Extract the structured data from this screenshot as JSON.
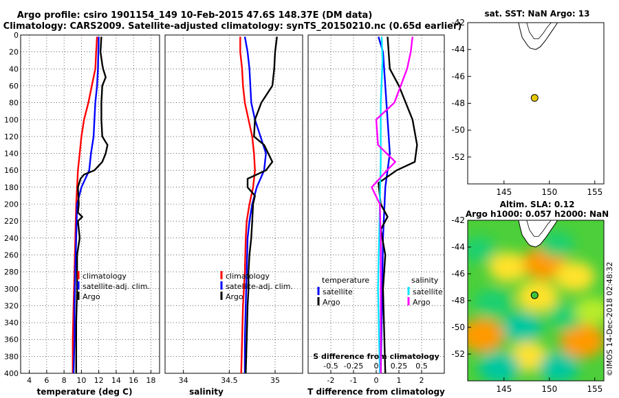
{
  "header": {
    "title_line1": "Argo profile: csiro 1901154_149 10-Feb-2015 47.6S 148.37E (DM data)",
    "title_line2": "Climatology: CARS2009. Satellite-adjusted climatology: synTS_20150210.nc (0.65d earlier)"
  },
  "colors": {
    "climatology": "#ff0000",
    "satellite_adj": "#0000ff",
    "argo": "#000000",
    "sal_satellite": "#00e5ff",
    "sal_argo": "#ff00ff",
    "grid": "#000000",
    "land": "#ffffff",
    "float_marker": "#e5c800"
  },
  "depth_axis": {
    "ticks": [
      "0",
      "20",
      "40",
      "60",
      "80",
      "100",
      "120",
      "140",
      "160",
      "180",
      "200",
      "220",
      "240",
      "260",
      "280",
      "300",
      "320",
      "340",
      "360",
      "380",
      "400"
    ],
    "range": [
      0,
      400
    ]
  },
  "chart_data": [
    {
      "type": "line",
      "id": "temperature",
      "xlabel": "temperature (deg C)",
      "xlim": [
        3,
        19
      ],
      "ylim": [
        400,
        0
      ],
      "xticks": [
        "4",
        "6",
        "8",
        "10",
        "12",
        "14",
        "16",
        "18"
      ],
      "xtick_values": [
        4,
        6,
        8,
        10,
        12,
        14,
        16,
        18
      ],
      "legend": {
        "position": "bottom-right",
        "entries": [
          "climatology",
          "satellite-adj. clim.",
          "Argo"
        ]
      },
      "series": [
        {
          "name": "climatology",
          "color": "#ff0000",
          "points": [
            [
              11.8,
              2
            ],
            [
              11.7,
              20
            ],
            [
              11.6,
              40
            ],
            [
              11.2,
              60
            ],
            [
              10.8,
              80
            ],
            [
              10.3,
              100
            ],
            [
              10.0,
              120
            ],
            [
              9.8,
              140
            ],
            [
              9.6,
              160
            ],
            [
              9.5,
              180
            ],
            [
              9.4,
              200
            ],
            [
              9.3,
              240
            ],
            [
              9.2,
              280
            ],
            [
              9.1,
              320
            ],
            [
              9.0,
              360
            ],
            [
              9.0,
              400
            ]
          ]
        },
        {
          "name": "satellite-adj. clim.",
          "color": "#0000ff",
          "points": [
            [
              12.0,
              2
            ],
            [
              11.95,
              20
            ],
            [
              11.9,
              40
            ],
            [
              11.8,
              60
            ],
            [
              11.6,
              80
            ],
            [
              11.5,
              100
            ],
            [
              11.4,
              120
            ],
            [
              11.1,
              140
            ],
            [
              10.9,
              160
            ],
            [
              10.0,
              180
            ],
            [
              9.5,
              200
            ],
            [
              9.4,
              240
            ],
            [
              9.3,
              280
            ],
            [
              9.2,
              320
            ],
            [
              9.2,
              360
            ],
            [
              9.1,
              400
            ]
          ]
        },
        {
          "name": "Argo",
          "color": "#000000",
          "points": [
            [
              12.3,
              2
            ],
            [
              12.2,
              20
            ],
            [
              12.4,
              35
            ],
            [
              12.5,
              40
            ],
            [
              12.8,
              50
            ],
            [
              12.4,
              60
            ],
            [
              12.3,
              80
            ],
            [
              12.3,
              100
            ],
            [
              12.4,
              120
            ],
            [
              13.0,
              130
            ],
            [
              12.8,
              140
            ],
            [
              12.4,
              150
            ],
            [
              11.5,
              160
            ],
            [
              10.3,
              165
            ],
            [
              9.9,
              170
            ],
            [
              9.6,
              180
            ],
            [
              9.7,
              200
            ],
            [
              9.6,
              210
            ],
            [
              10.1,
              215
            ],
            [
              9.6,
              220
            ],
            [
              9.8,
              240
            ],
            [
              9.5,
              260
            ],
            [
              9.5,
              300
            ],
            [
              9.4,
              340
            ],
            [
              9.4,
              400
            ]
          ]
        }
      ]
    },
    {
      "type": "line",
      "id": "salinity",
      "xlabel": "salinity",
      "xlim": [
        33.8,
        35.3
      ],
      "ylim": [
        400,
        0
      ],
      "xticks": [
        "34",
        "34.5",
        "35"
      ],
      "xtick_values": [
        34,
        34.5,
        35
      ],
      "legend": {
        "position": "bottom-right",
        "entries": [
          "climatology",
          "satellite-adj. clim.",
          "Argo"
        ]
      },
      "series": [
        {
          "name": "climatology",
          "color": "#ff0000",
          "points": [
            [
              34.62,
              2
            ],
            [
              34.62,
              20
            ],
            [
              34.64,
              40
            ],
            [
              34.65,
              60
            ],
            [
              34.67,
              80
            ],
            [
              34.71,
              100
            ],
            [
              34.75,
              120
            ],
            [
              34.77,
              140
            ],
            [
              34.78,
              160
            ],
            [
              34.76,
              180
            ],
            [
              34.72,
              200
            ],
            [
              34.69,
              220
            ],
            [
              34.68,
              240
            ],
            [
              34.67,
              280
            ],
            [
              34.65,
              320
            ],
            [
              34.64,
              360
            ],
            [
              34.63,
              400
            ]
          ]
        },
        {
          "name": "satellite-adj. clim.",
          "color": "#0000ff",
          "points": [
            [
              34.67,
              2
            ],
            [
              34.7,
              20
            ],
            [
              34.72,
              40
            ],
            [
              34.73,
              60
            ],
            [
              34.74,
              80
            ],
            [
              34.78,
              100
            ],
            [
              34.84,
              120
            ],
            [
              34.9,
              140
            ],
            [
              34.88,
              160
            ],
            [
              34.8,
              180
            ],
            [
              34.75,
              200
            ],
            [
              34.72,
              220
            ],
            [
              34.7,
              240
            ],
            [
              34.69,
              280
            ],
            [
              34.68,
              320
            ],
            [
              34.67,
              360
            ],
            [
              34.67,
              400
            ]
          ]
        },
        {
          "name": "Argo",
          "color": "#000000",
          "points": [
            [
              35.02,
              2
            ],
            [
              35.0,
              20
            ],
            [
              34.99,
              40
            ],
            [
              34.97,
              60
            ],
            [
              34.85,
              80
            ],
            [
              34.78,
              100
            ],
            [
              34.77,
              120
            ],
            [
              34.88,
              130
            ],
            [
              34.97,
              150
            ],
            [
              34.9,
              160
            ],
            [
              34.7,
              170
            ],
            [
              34.7,
              180
            ],
            [
              34.78,
              190
            ],
            [
              34.76,
              200
            ],
            [
              34.75,
              220
            ],
            [
              34.74,
              240
            ],
            [
              34.72,
              260
            ],
            [
              34.71,
              280
            ],
            [
              34.71,
              300
            ],
            [
              34.7,
              320
            ],
            [
              34.69,
              360
            ],
            [
              34.68,
              400
            ]
          ]
        }
      ]
    },
    {
      "type": "line",
      "id": "difference",
      "xlabel": "T difference from climatology",
      "xlim": [
        -3,
        3
      ],
      "ylim": [
        400,
        0
      ],
      "xticks": [
        "-2",
        "-1",
        "0",
        "1",
        "2"
      ],
      "xtick_values": [
        -2,
        -1,
        0,
        1,
        2
      ],
      "top_axis": {
        "label": "S difference from climatology",
        "ticks": [
          "-0.5",
          "-0.25",
          "0",
          "0.25",
          "0.5"
        ],
        "tick_values": [
          -0.5,
          -0.25,
          0,
          0.25,
          0.5
        ]
      },
      "legend_temperature": {
        "title": "temperature",
        "entries": [
          "satellite",
          "Argo"
        ]
      },
      "legend_salinity": {
        "title": "salinity",
        "entries": [
          "satellite",
          "Argo"
        ]
      },
      "series": [
        {
          "name": "T satellite",
          "axis": "T",
          "color": "#0000ff",
          "points": [
            [
              0.1,
              2
            ],
            [
              0.3,
              20
            ],
            [
              0.4,
              60
            ],
            [
              0.5,
              100
            ],
            [
              0.6,
              140
            ],
            [
              0.4,
              180
            ],
            [
              0.3,
              240
            ],
            [
              0.25,
              320
            ],
            [
              0.2,
              400
            ]
          ]
        },
        {
          "name": "T Argo",
          "axis": "T",
          "color": "#000000",
          "points": [
            [
              0.5,
              2
            ],
            [
              0.6,
              40
            ],
            [
              1.0,
              60
            ],
            [
              1.6,
              100
            ],
            [
              1.8,
              130
            ],
            [
              1.7,
              150
            ],
            [
              0.9,
              160
            ],
            [
              0.1,
              175
            ],
            [
              0.2,
              200
            ],
            [
              0.5,
              215
            ],
            [
              0.2,
              230
            ],
            [
              0.4,
              260
            ],
            [
              0.3,
              300
            ],
            [
              0.4,
              400
            ]
          ]
        },
        {
          "name": "S satellite",
          "axis": "S",
          "color": "#00e5ff",
          "points": [
            [
              0.06,
              2
            ],
            [
              0.07,
              30
            ],
            [
              0.05,
              80
            ],
            [
              0.05,
              150
            ],
            [
              0.04,
              200
            ],
            [
              0.02,
              300
            ],
            [
              0.04,
              400
            ]
          ]
        },
        {
          "name": "S Argo",
          "axis": "S",
          "color": "#ff00ff",
          "points": [
            [
              0.4,
              2
            ],
            [
              0.38,
              20
            ],
            [
              0.34,
              40
            ],
            [
              0.2,
              80
            ],
            [
              0.0,
              100
            ],
            [
              0.02,
              130
            ],
            [
              0.21,
              150
            ],
            [
              0.12,
              160
            ],
            [
              -0.05,
              180
            ],
            [
              0.04,
              200
            ],
            [
              0.05,
              240
            ],
            [
              0.05,
              400
            ]
          ]
        }
      ]
    },
    {
      "type": "scatter",
      "id": "sst_map",
      "title": "sat. SST: NaN Argo: 13",
      "xlim": [
        141,
        156
      ],
      "ylim": [
        -54,
        -42
      ],
      "xticks": [
        "145",
        "150",
        "155"
      ],
      "xtick_values": [
        145,
        150,
        155
      ],
      "yticks": [
        "-42",
        "-44",
        "-46",
        "-48",
        "-50",
        "-52"
      ],
      "ytick_values": [
        -42,
        -44,
        -46,
        -48,
        -50,
        -52
      ],
      "points": [
        {
          "lon": 148.37,
          "lat": -47.6,
          "label": "Argo float"
        }
      ]
    },
    {
      "type": "heatmap",
      "id": "sla_map",
      "title_line1": "Altim. SLA: 0.12",
      "title_line2": "Argo h1000: 0.057 h2000: NaN",
      "xlim": [
        141,
        156
      ],
      "ylim": [
        -54,
        -42
      ],
      "xticks": [
        "145",
        "150",
        "155"
      ],
      "xtick_values": [
        145,
        150,
        155
      ],
      "yticks": [
        "-42",
        "-44",
        "-46",
        "-48",
        "-50",
        "-52"
      ],
      "ytick_values": [
        -42,
        -44,
        -46,
        -48,
        -50,
        -52
      ],
      "points": [
        {
          "lon": 148.37,
          "lat": -47.6,
          "label": "Argo float"
        }
      ],
      "blobs": [
        {
          "lon": 145.5,
          "lat": -45.5,
          "level": 0.6
        },
        {
          "lon": 149.5,
          "lat": -45.2,
          "level": 0.8
        },
        {
          "lon": 148.7,
          "lat": -47.7,
          "level": 0.7
        },
        {
          "lon": 152.8,
          "lat": -46.2,
          "level": 0.6
        },
        {
          "lon": 142.6,
          "lat": -50.6,
          "level": 0.9
        },
        {
          "lon": 153.6,
          "lat": -51.0,
          "level": 0.9
        },
        {
          "lon": 147.7,
          "lat": -52.2,
          "level": 0.6
        },
        {
          "lon": 143.8,
          "lat": -48.2,
          "level": -0.5
        },
        {
          "lon": 147.0,
          "lat": -50.0,
          "level": -0.6
        },
        {
          "lon": 151.8,
          "lat": -49.2,
          "level": -0.4
        },
        {
          "lon": 144.5,
          "lat": -53.0,
          "level": -0.7
        },
        {
          "lon": 151.0,
          "lat": -53.0,
          "level": -0.6
        },
        {
          "lon": 154.8,
          "lat": -48.8,
          "level": 0.4
        },
        {
          "lon": 150.8,
          "lat": -43.8,
          "level": -0.3
        },
        {
          "lon": 142.2,
          "lat": -44.2,
          "level": -0.3
        }
      ]
    }
  ],
  "watermark": "©IMOS 14-Dec-2018 02:48:32"
}
